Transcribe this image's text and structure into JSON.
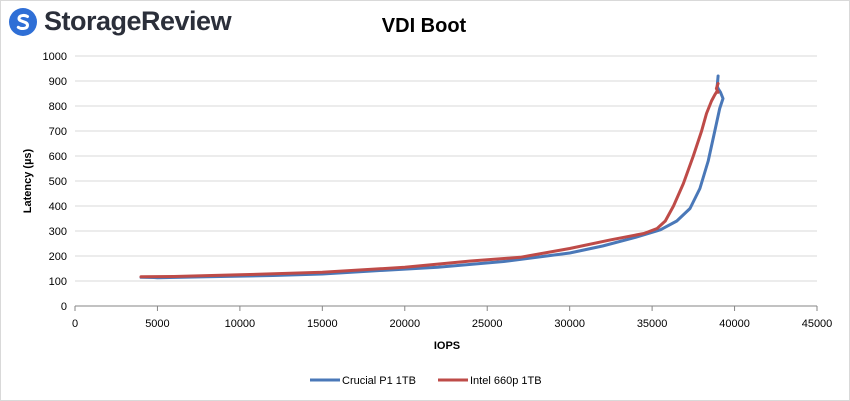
{
  "branding": {
    "logo_text": "StorageReview",
    "logo_icon": "storagereview-logo-icon"
  },
  "chart_data": {
    "type": "line",
    "title": "VDI Boot",
    "xlabel": "IOPS",
    "ylabel": "Latency (µs)",
    "xlim": [
      0,
      45000
    ],
    "ylim": [
      0,
      1000
    ],
    "xticks": [
      "0",
      "5000",
      "10000",
      "15000",
      "20000",
      "25000",
      "30000",
      "35000",
      "40000",
      "45000"
    ],
    "yticks": [
      "0",
      "100",
      "200",
      "300",
      "400",
      "500",
      "600",
      "700",
      "800",
      "900",
      "1000"
    ],
    "grid": "horizontal",
    "legend_position": "bottom",
    "series": [
      {
        "name": "Crucial P1 1TB",
        "color": "#4a78b8",
        "points": [
          [
            4000,
            115
          ],
          [
            4800,
            114
          ],
          [
            5000,
            113
          ],
          [
            8000,
            117
          ],
          [
            12000,
            122
          ],
          [
            15000,
            128
          ],
          [
            18000,
            140
          ],
          [
            22000,
            155
          ],
          [
            26000,
            178
          ],
          [
            30000,
            212
          ],
          [
            32000,
            240
          ],
          [
            34000,
            275
          ],
          [
            35500,
            305
          ],
          [
            36500,
            340
          ],
          [
            37300,
            390
          ],
          [
            37900,
            470
          ],
          [
            38400,
            580
          ],
          [
            38800,
            700
          ],
          [
            39100,
            790
          ],
          [
            39300,
            830
          ],
          [
            39150,
            855
          ],
          [
            39000,
            870
          ],
          [
            38950,
            880
          ],
          [
            39000,
            920
          ]
        ]
      },
      {
        "name": "Intel 660p 1TB",
        "color": "#be4b48",
        "points": [
          [
            4000,
            117
          ],
          [
            6000,
            118
          ],
          [
            10000,
            125
          ],
          [
            15000,
            135
          ],
          [
            20000,
            155
          ],
          [
            24000,
            180
          ],
          [
            27000,
            195
          ],
          [
            30000,
            230
          ],
          [
            32500,
            265
          ],
          [
            34500,
            290
          ],
          [
            35300,
            310
          ],
          [
            35800,
            340
          ],
          [
            36300,
            400
          ],
          [
            36900,
            490
          ],
          [
            37500,
            600
          ],
          [
            38000,
            700
          ],
          [
            38300,
            770
          ],
          [
            38600,
            820
          ],
          [
            38800,
            845
          ],
          [
            38950,
            860
          ],
          [
            39000,
            855
          ],
          [
            38900,
            870
          ],
          [
            39000,
            890
          ]
        ]
      }
    ]
  }
}
